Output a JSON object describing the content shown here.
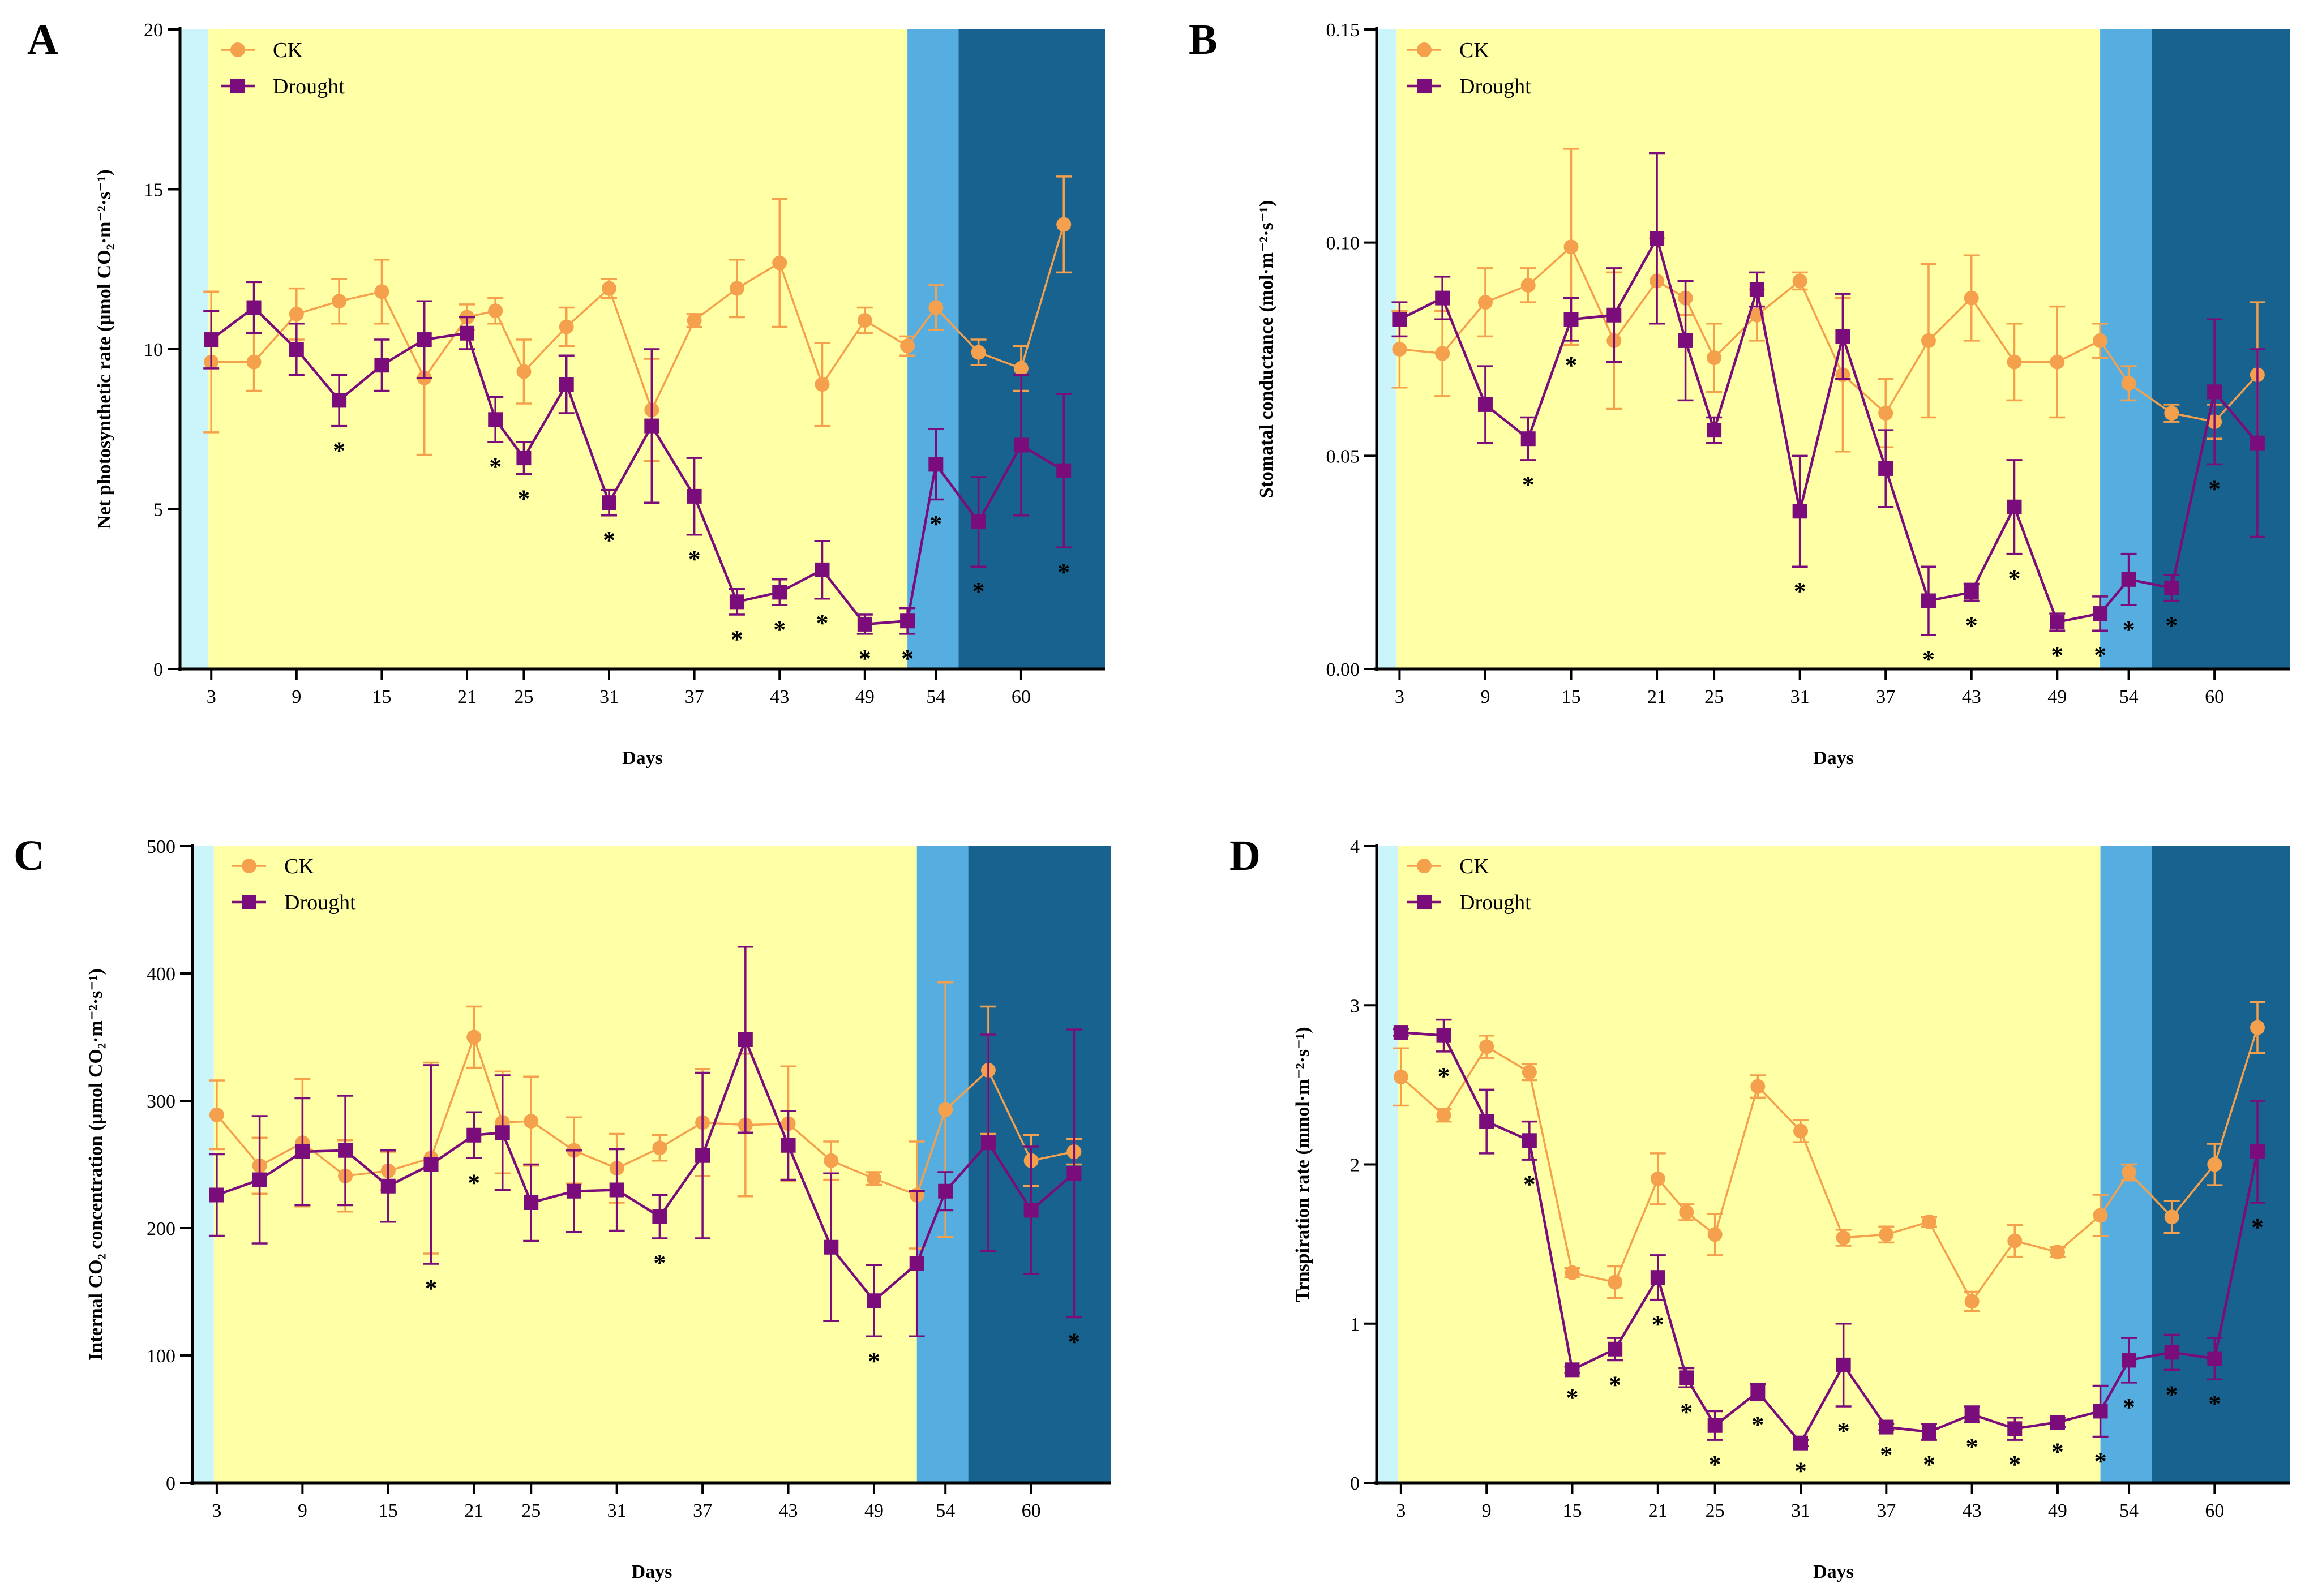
{
  "chart_data": [
    {
      "id": "A",
      "panel_label": "A",
      "type": "line",
      "title": "",
      "xlabel": "Days",
      "ylabel": "Net photosynthetic rate (μmol CO₂·m⁻²·s⁻¹)",
      "x_ticks": [
        3,
        9,
        15,
        21,
        25,
        31,
        37,
        43,
        49,
        54,
        60
      ],
      "ylim": [
        0,
        20
      ],
      "y_ticks": [
        0,
        5,
        10,
        15,
        20
      ],
      "y_tick_labels": [
        "0",
        "5",
        "10",
        "15",
        "20"
      ],
      "x": [
        3,
        6,
        9,
        12,
        15,
        18,
        21,
        23,
        25,
        28,
        31,
        34,
        37,
        40,
        43,
        46,
        49,
        52,
        54,
        57,
        60,
        63
      ],
      "stage_backgrounds": [
        {
          "from": 0.8,
          "to": 2.8,
          "color": "#ccf5fb"
        },
        {
          "from": 2.8,
          "to": 52.0,
          "color": "#ffffa6"
        },
        {
          "from": 52.0,
          "to": 55.6,
          "color": "#56aee0"
        },
        {
          "from": 55.6,
          "to": 65.9,
          "color": "#17628f"
        }
      ],
      "x_domain": [
        0.8,
        65.9
      ],
      "legend": [
        "CK",
        "Drought"
      ],
      "series": [
        {
          "name": "CK",
          "color": "#f5a04c",
          "marker": "circle",
          "values": [
            9.6,
            9.6,
            11.1,
            11.5,
            11.8,
            9.1,
            11.0,
            11.2,
            9.3,
            10.7,
            11.9,
            8.1,
            10.9,
            11.9,
            12.7,
            8.9,
            10.9,
            10.1,
            11.3,
            9.9,
            9.4,
            13.9
          ],
          "errors": [
            2.2,
            0.9,
            0.8,
            0.7,
            1.0,
            2.4,
            0.4,
            0.4,
            1.0,
            0.6,
            0.3,
            1.6,
            0.2,
            0.9,
            2.0,
            1.3,
            0.4,
            0.3,
            0.7,
            0.4,
            0.7,
            1.5
          ]
        },
        {
          "name": "Drought",
          "color": "#7b0c7b",
          "marker": "square",
          "values": [
            10.3,
            11.3,
            10.0,
            8.4,
            9.5,
            10.3,
            10.5,
            7.8,
            6.6,
            8.9,
            5.2,
            7.6,
            5.4,
            2.1,
            2.4,
            3.1,
            1.4,
            1.5,
            6.4,
            4.6,
            7.0,
            6.2
          ],
          "errors": [
            0.9,
            0.8,
            0.8,
            0.8,
            0.8,
            1.2,
            0.5,
            0.7,
            0.5,
            0.9,
            0.4,
            2.4,
            1.2,
            0.4,
            0.4,
            0.9,
            0.3,
            0.4,
            1.1,
            1.4,
            2.2,
            2.4
          ]
        }
      ],
      "significant_x": [
        12,
        23,
        25,
        31,
        37,
        40,
        43,
        46,
        49,
        52,
        54,
        57,
        63
      ]
    },
    {
      "id": "B",
      "panel_label": "B",
      "type": "line",
      "title": "",
      "xlabel": "Days",
      "ylabel": "Stomatal conductance (mol·m⁻²·s⁻¹)",
      "x_ticks": [
        3,
        9,
        15,
        21,
        25,
        31,
        37,
        43,
        49,
        54,
        60
      ],
      "ylim": [
        0,
        0.15
      ],
      "y_ticks": [
        0,
        0.05,
        0.1,
        0.15
      ],
      "y_tick_labels": [
        "0.00",
        "0.05",
        "0.10",
        "0.15"
      ],
      "x": [
        3,
        6,
        9,
        12,
        15,
        18,
        21,
        23,
        25,
        28,
        31,
        34,
        37,
        40,
        43,
        46,
        49,
        52,
        54,
        57,
        60,
        63
      ],
      "stage_backgrounds": [
        {
          "from": 1.4,
          "to": 2.8,
          "color": "#ccf5fb"
        },
        {
          "from": 2.8,
          "to": 52.0,
          "color": "#ffffa6"
        },
        {
          "from": 52.0,
          "to": 55.6,
          "color": "#56aee0"
        },
        {
          "from": 55.6,
          "to": 65.3,
          "color": "#17628f"
        }
      ],
      "x_domain": [
        1.4,
        65.3
      ],
      "legend": [
        "CK",
        "Drought"
      ],
      "series": [
        {
          "name": "CK",
          "color": "#f5a04c",
          "marker": "circle",
          "values": [
            0.075,
            0.074,
            0.086,
            0.09,
            0.099,
            0.077,
            0.091,
            0.087,
            0.073,
            0.083,
            0.091,
            0.069,
            0.06,
            0.077,
            0.087,
            0.072,
            0.072,
            0.077,
            0.067,
            0.06,
            0.058,
            0.069
          ],
          "errors": [
            0.009,
            0.01,
            0.008,
            0.004,
            0.023,
            0.016,
            0.01,
            0.004,
            0.008,
            0.006,
            0.002,
            0.018,
            0.008,
            0.018,
            0.01,
            0.009,
            0.013,
            0.004,
            0.004,
            0.002,
            0.004,
            0.017
          ]
        },
        {
          "name": "Drought",
          "color": "#7b0c7b",
          "marker": "square",
          "values": [
            0.082,
            0.087,
            0.062,
            0.054,
            0.082,
            0.083,
            0.101,
            0.077,
            0.056,
            0.089,
            0.037,
            0.078,
            0.047,
            0.016,
            0.018,
            0.038,
            0.011,
            0.013,
            0.021,
            0.019,
            0.065,
            0.053
          ],
          "errors": [
            0.004,
            0.005,
            0.009,
            0.005,
            0.005,
            0.011,
            0.02,
            0.014,
            0.003,
            0.004,
            0.013,
            0.01,
            0.009,
            0.008,
            0.002,
            0.011,
            0.002,
            0.004,
            0.006,
            0.003,
            0.017,
            0.022
          ]
        }
      ],
      "significant_x": [
        12,
        15,
        31,
        40,
        43,
        46,
        49,
        52,
        54,
        57,
        60
      ]
    },
    {
      "id": "C",
      "panel_label": "C",
      "type": "line",
      "title": "",
      "xlabel": "Days",
      "ylabel": "Internal CO₂ concentration (μmol CO₂·m⁻²·s⁻¹)",
      "x_ticks": [
        3,
        9,
        15,
        21,
        25,
        31,
        37,
        43,
        49,
        54,
        60
      ],
      "ylim": [
        0,
        500
      ],
      "y_ticks": [
        0,
        100,
        200,
        300,
        400,
        500
      ],
      "y_tick_labels": [
        "0",
        "100",
        "200",
        "300",
        "400",
        "500"
      ],
      "x": [
        3,
        6,
        9,
        12,
        15,
        18,
        21,
        23,
        25,
        28,
        31,
        34,
        37,
        40,
        43,
        46,
        49,
        52,
        54,
        57,
        60,
        63
      ],
      "stage_backgrounds": [
        {
          "from": 1.3,
          "to": 2.8,
          "color": "#ccf5fb"
        },
        {
          "from": 2.8,
          "to": 52.0,
          "color": "#ffffa6"
        },
        {
          "from": 52.0,
          "to": 55.6,
          "color": "#56aee0"
        },
        {
          "from": 55.6,
          "to": 65.6,
          "color": "#17628f"
        }
      ],
      "x_domain": [
        1.3,
        65.6
      ],
      "legend": [
        "CK",
        "Drought"
      ],
      "series": [
        {
          "name": "CK",
          "color": "#f5a04c",
          "marker": "circle",
          "values": [
            289,
            249,
            267,
            241,
            245,
            255,
            350,
            283,
            284,
            261,
            247,
            263,
            283,
            281,
            282,
            253,
            239,
            226,
            293,
            324,
            253,
            260
          ],
          "errors": [
            27,
            22,
            50,
            28,
            15,
            75,
            24,
            40,
            35,
            26,
            27,
            10,
            42,
            56,
            45,
            15,
            5,
            42,
            100,
            50,
            20,
            10
          ]
        },
        {
          "name": "Drought",
          "color": "#7b0c7b",
          "marker": "square",
          "values": [
            226,
            238,
            260,
            261,
            233,
            250,
            273,
            275,
            220,
            229,
            230,
            209,
            257,
            348,
            265,
            185,
            143,
            172,
            229,
            267,
            214,
            243
          ],
          "errors": [
            32,
            50,
            42,
            43,
            28,
            78,
            18,
            45,
            30,
            32,
            32,
            17,
            65,
            73,
            27,
            58,
            28,
            57,
            15,
            85,
            50,
            113
          ]
        }
      ],
      "significant_x": [
        18,
        21,
        34,
        49,
        63
      ]
    },
    {
      "id": "D",
      "panel_label": "D",
      "type": "line",
      "title": "",
      "xlabel": "Days",
      "ylabel": "Trnspiration rate (mmol·m⁻²·s⁻¹)",
      "x_ticks": [
        3,
        9,
        15,
        21,
        25,
        31,
        37,
        43,
        49,
        54,
        60
      ],
      "ylim": [
        0,
        4
      ],
      "y_ticks": [
        0,
        1,
        2,
        3,
        4
      ],
      "y_tick_labels": [
        "0",
        "1",
        "2",
        "3",
        "4"
      ],
      "x": [
        3,
        6,
        9,
        12,
        15,
        18,
        21,
        23,
        25,
        28,
        31,
        34,
        37,
        40,
        43,
        46,
        49,
        52,
        54,
        57,
        60,
        63
      ],
      "stage_backgrounds": [
        {
          "from": 1.3,
          "to": 2.8,
          "color": "#ccf5fb"
        },
        {
          "from": 2.8,
          "to": 52.0,
          "color": "#ffffa6"
        },
        {
          "from": 52.0,
          "to": 55.6,
          "color": "#56aee0"
        },
        {
          "from": 55.6,
          "to": 65.3,
          "color": "#17628f"
        }
      ],
      "x_domain": [
        1.3,
        65.3
      ],
      "legend": [
        "CK",
        "Drought"
      ],
      "series": [
        {
          "name": "CK",
          "color": "#f5a04c",
          "marker": "circle",
          "values": [
            2.55,
            2.31,
            2.74,
            2.58,
            1.32,
            1.26,
            1.91,
            1.7,
            1.56,
            2.49,
            2.21,
            1.54,
            1.56,
            1.64,
            1.14,
            1.52,
            1.45,
            1.68,
            1.95,
            1.67,
            2.0,
            2.86
          ],
          "errors": [
            0.18,
            0.04,
            0.07,
            0.05,
            0.03,
            0.1,
            0.16,
            0.05,
            0.13,
            0.07,
            0.07,
            0.05,
            0.05,
            0.03,
            0.06,
            0.1,
            0.03,
            0.13,
            0.05,
            0.1,
            0.13,
            0.16
          ]
        },
        {
          "name": "Drought",
          "color": "#7b0c7b",
          "marker": "square",
          "values": [
            2.83,
            2.81,
            2.27,
            2.15,
            0.71,
            0.84,
            1.29,
            0.66,
            0.36,
            0.57,
            0.25,
            0.74,
            0.35,
            0.32,
            0.43,
            0.34,
            0.38,
            0.45,
            0.77,
            0.82,
            0.78,
            2.08
          ],
          "errors": [
            0.02,
            0.1,
            0.2,
            0.12,
            0.02,
            0.07,
            0.14,
            0.06,
            0.09,
            0.05,
            0.02,
            0.26,
            0.02,
            0.05,
            0.05,
            0.07,
            0.03,
            0.16,
            0.14,
            0.11,
            0.13,
            0.32
          ]
        }
      ],
      "significant_x": [
        6,
        12,
        15,
        18,
        21,
        23,
        25,
        28,
        31,
        34,
        37,
        40,
        43,
        46,
        49,
        52,
        54,
        57,
        60,
        63
      ]
    }
  ]
}
